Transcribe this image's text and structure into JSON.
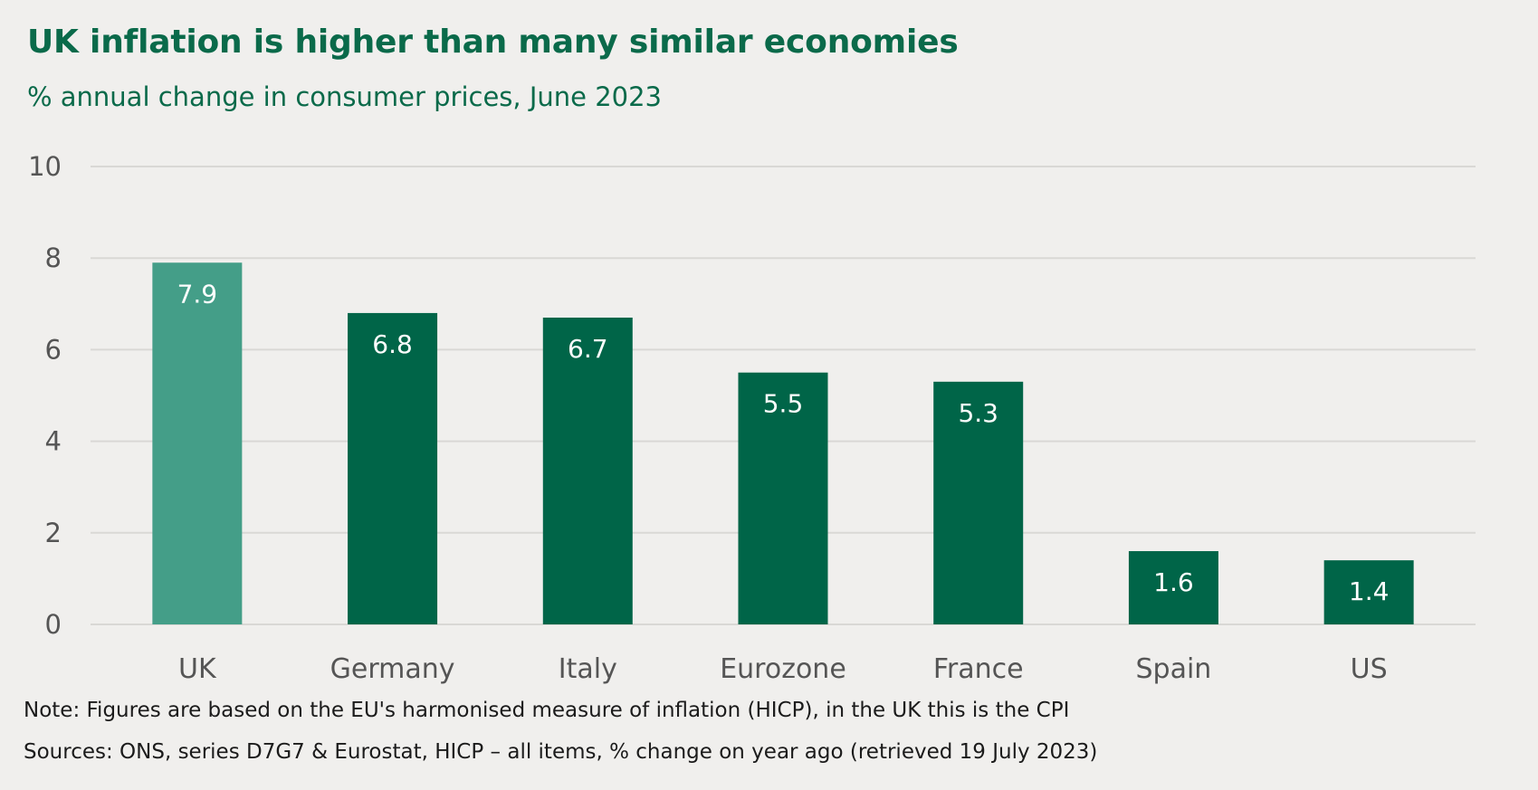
{
  "title": "UK inflation is higher than many similar economies",
  "subtitle": "% annual change in consumer prices, June 2023",
  "notes": {
    "note": "Note: Figures are based on the EU's harmonised measure of inflation (HICP), in the UK this is the CPI",
    "sources": "Sources: ONS, series D7G7 & Eurostat, HICP – all items, % change on year ago (retrieved 19 July 2023)"
  },
  "colors": {
    "background": "#f0efed",
    "highlight_bar": "#449e88",
    "bar": "#006548",
    "title": "#0a6a4a",
    "grid": "#d9d8d5",
    "tick_text": "#555555"
  },
  "chart_data": {
    "type": "bar",
    "title": "UK inflation is higher than many similar economies",
    "subtitle": "% annual change in consumer prices, June 2023",
    "xlabel": "",
    "ylabel": "",
    "categories": [
      "UK",
      "Germany",
      "Italy",
      "Eurozone",
      "France",
      "Spain",
      "US"
    ],
    "values": [
      7.9,
      6.8,
      6.7,
      5.5,
      5.3,
      1.6,
      1.4
    ],
    "data_labels": [
      "7.9",
      "6.8",
      "6.7",
      "5.5",
      "5.3",
      "1.6",
      "1.4"
    ],
    "highlighted_category": "UK",
    "ylim": [
      0,
      10
    ],
    "yticks": [
      0,
      2,
      4,
      6,
      8,
      10
    ],
    "grid": true,
    "legend": "none"
  }
}
